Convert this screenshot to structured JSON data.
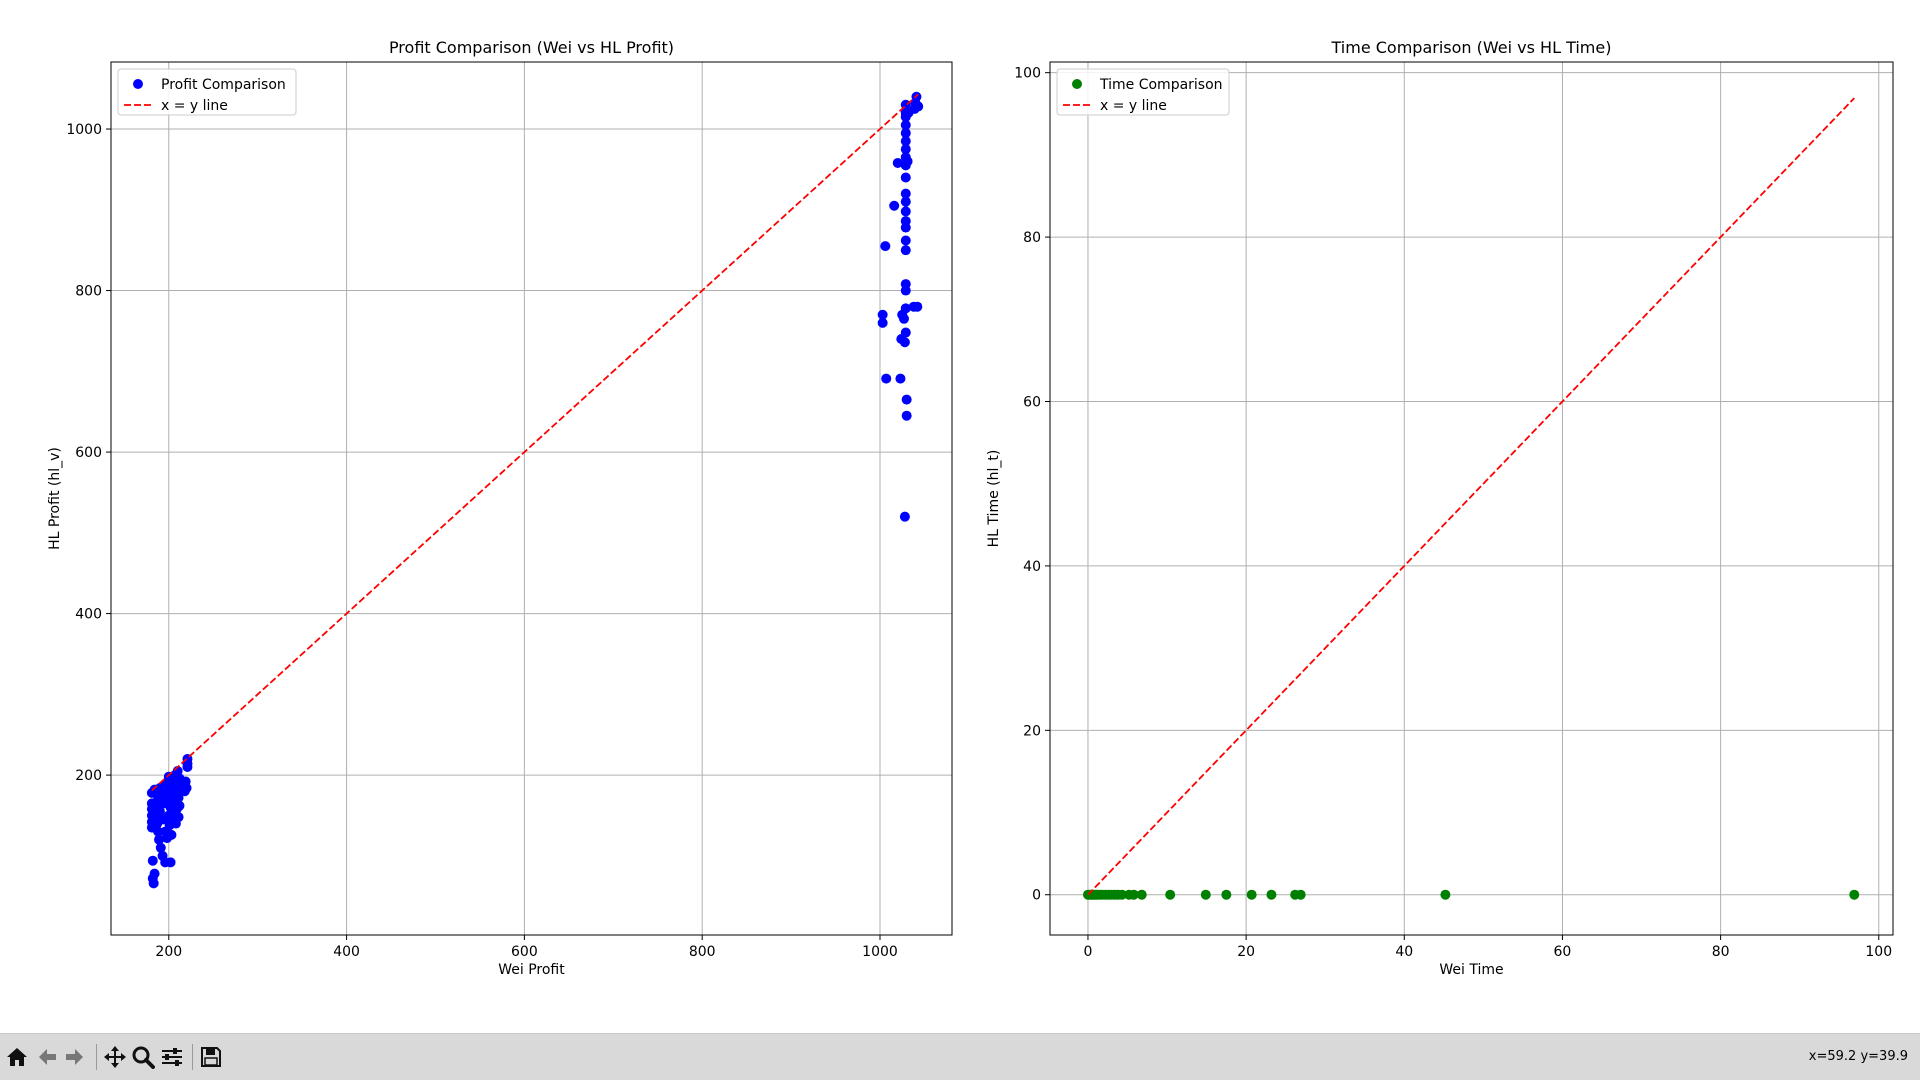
{
  "toolbar": {
    "buttons": [
      {
        "name": "home-icon",
        "label": "Home"
      },
      {
        "name": "back-icon",
        "label": "Back"
      },
      {
        "name": "forward-icon",
        "label": "Forward"
      },
      {
        "name": "pan-icon",
        "label": "Pan"
      },
      {
        "name": "zoom-icon",
        "label": "Zoom"
      },
      {
        "name": "configure-subplots-icon",
        "label": "Configure subplots"
      },
      {
        "name": "save-icon",
        "label": "Save"
      }
    ],
    "coords": "x=59.2 y=39.9"
  },
  "colors": {
    "profit_points": "#0000ff",
    "time_points": "#008000",
    "reference_line": "#ff0000",
    "toolbar_bg": "#d9d9d9"
  },
  "chart_data": [
    {
      "type": "scatter",
      "title": "Profit Comparison (Wei vs HL Profit)",
      "xlabel": "Wei Profit",
      "ylabel": "HL Profit (hl_v)",
      "xlim": [
        135,
        1081
      ],
      "ylim": [
        2,
        1083
      ],
      "xticks": [
        200,
        400,
        600,
        800,
        1000
      ],
      "yticks": [
        200,
        400,
        600,
        800,
        1000
      ],
      "grid": true,
      "legend_position": "upper left",
      "series": [
        {
          "name": "Profit Comparison",
          "kind": "scatter",
          "color": "#0000ff",
          "points": [
            [
              181,
              178
            ],
            [
              181,
              165
            ],
            [
              181,
              158
            ],
            [
              181,
              150
            ],
            [
              181,
              142
            ],
            [
              181,
              135
            ],
            [
              182,
              94
            ],
            [
              182,
              72
            ],
            [
              183,
              66
            ],
            [
              184,
              78
            ],
            [
              184,
              182
            ],
            [
              185,
              148
            ],
            [
              186,
              160
            ],
            [
              187,
              140
            ],
            [
              188,
              170
            ],
            [
              188,
              130
            ],
            [
              189,
              120
            ],
            [
              190,
              184
            ],
            [
              190,
              155
            ],
            [
              191,
              110
            ],
            [
              192,
              176
            ],
            [
              193,
              100
            ],
            [
              194,
              145
            ],
            [
              195,
              165
            ],
            [
              196,
              92
            ],
            [
              196,
              130
            ],
            [
              197,
              190
            ],
            [
              198,
              122
            ],
            [
              199,
              170
            ],
            [
              200,
              198
            ],
            [
              200,
              150
            ],
            [
              200,
              180
            ],
            [
              201,
              138
            ],
            [
              202,
              92
            ],
            [
              202,
              160
            ],
            [
              203,
              195
            ],
            [
              203,
              126
            ],
            [
              204,
              172
            ],
            [
              205,
              185
            ],
            [
              205,
              155
            ],
            [
              206,
              145
            ],
            [
              207,
              200
            ],
            [
              207,
              168
            ],
            [
              208,
              140
            ],
            [
              209,
              180
            ],
            [
              209,
              158
            ],
            [
              210,
              205
            ],
            [
              210,
              190
            ],
            [
              211,
              148
            ],
            [
              211,
              172
            ],
            [
              212,
              162
            ],
            [
              212,
              196
            ],
            [
              213,
              184
            ],
            [
              218,
              180
            ],
            [
              219,
              192
            ],
            [
              220,
              184
            ],
            [
              221,
              210
            ],
            [
              221,
              214
            ],
            [
              221,
              220
            ],
            [
              1003,
              770
            ],
            [
              1003,
              760
            ],
            [
              1006,
              855
            ],
            [
              1007,
              691
            ],
            [
              1016,
              905
            ],
            [
              1020,
              958
            ],
            [
              1023,
              691
            ],
            [
              1024,
              740
            ],
            [
              1025,
              770
            ],
            [
              1027,
              765
            ],
            [
              1028,
              520
            ],
            [
              1028,
              736
            ],
            [
              1029,
              748
            ],
            [
              1029,
              778
            ],
            [
              1029,
              800
            ],
            [
              1029,
              808
            ],
            [
              1029,
              850
            ],
            [
              1029,
              862
            ],
            [
              1029,
              878
            ],
            [
              1029,
              886
            ],
            [
              1029,
              898
            ],
            [
              1029,
              910
            ],
            [
              1029,
              920
            ],
            [
              1029,
              940
            ],
            [
              1029,
              955
            ],
            [
              1029,
              965
            ],
            [
              1029,
              975
            ],
            [
              1029,
              985
            ],
            [
              1029,
              995
            ],
            [
              1029,
              1005
            ],
            [
              1029,
              1015
            ],
            [
              1029,
              1020
            ],
            [
              1029,
              1030
            ],
            [
              1030,
              665
            ],
            [
              1030,
              645
            ],
            [
              1031,
              960
            ],
            [
              1032,
              1020
            ],
            [
              1038,
              780
            ],
            [
              1039,
              1025
            ],
            [
              1040,
              1032
            ],
            [
              1041,
              1040
            ],
            [
              1042,
              780
            ],
            [
              1043,
              1028
            ]
          ]
        },
        {
          "name": "x = y line",
          "kind": "line",
          "style": "dashed",
          "color": "#ff0000",
          "x": [
            181,
            1043
          ],
          "y": [
            181,
            1043
          ]
        }
      ]
    },
    {
      "type": "scatter",
      "title": "Time Comparison (Wei vs HL Time)",
      "xlabel": "Wei Time",
      "ylabel": "HL Time (hl_t)",
      "xlim": [
        -4.8,
        101.8
      ],
      "ylim": [
        -4.9,
        101.3
      ],
      "xticks": [
        0,
        20,
        40,
        60,
        80,
        100
      ],
      "yticks": [
        0,
        20,
        40,
        60,
        80,
        100
      ],
      "grid": true,
      "legend_position": "upper left",
      "series": [
        {
          "name": "Time Comparison",
          "kind": "scatter",
          "color": "#008000",
          "points": [
            [
              0,
              0
            ],
            [
              0.2,
              0
            ],
            [
              0.4,
              0
            ],
            [
              0.6,
              0
            ],
            [
              0.8,
              0
            ],
            [
              1.0,
              0
            ],
            [
              1.2,
              0
            ],
            [
              1.5,
              0
            ],
            [
              1.8,
              0
            ],
            [
              2.2,
              0
            ],
            [
              2.6,
              0
            ],
            [
              3.0,
              0
            ],
            [
              3.4,
              0
            ],
            [
              3.8,
              0
            ],
            [
              4.3,
              0
            ],
            [
              5.2,
              0
            ],
            [
              5.8,
              0
            ],
            [
              6.8,
              0
            ],
            [
              10.4,
              0
            ],
            [
              14.9,
              0
            ],
            [
              17.5,
              0
            ],
            [
              20.7,
              0
            ],
            [
              23.2,
              0
            ],
            [
              26.2,
              0
            ],
            [
              26.9,
              0
            ],
            [
              45.2,
              0
            ],
            [
              96.9,
              0
            ]
          ]
        },
        {
          "name": "x = y line",
          "kind": "line",
          "style": "dashed",
          "color": "#ff0000",
          "x": [
            0,
            96.9
          ],
          "y": [
            0,
            96.9
          ]
        }
      ]
    }
  ]
}
